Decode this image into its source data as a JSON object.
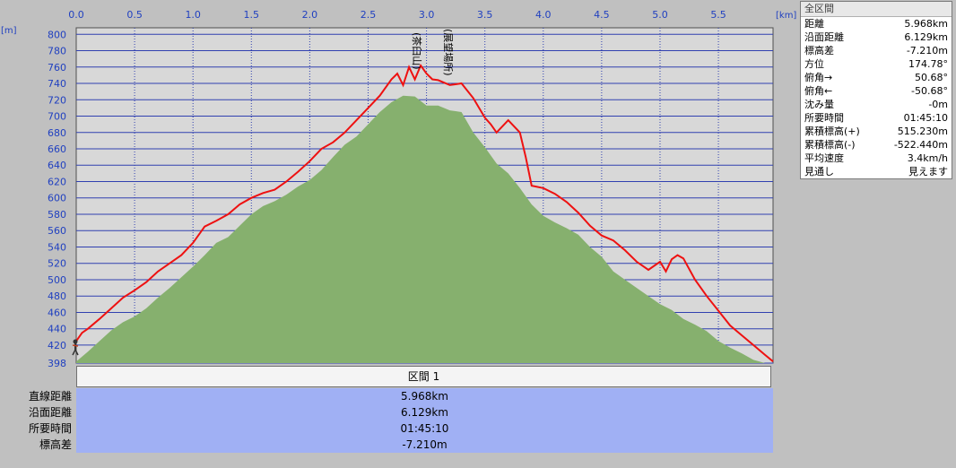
{
  "chart_data": {
    "type": "area",
    "x_unit": "[km]",
    "y_unit": "[m]",
    "x_ticks": [
      "0.0",
      "0.5",
      "1.0",
      "1.5",
      "2.0",
      "2.5",
      "3.0",
      "3.5",
      "4.0",
      "4.5",
      "5.0",
      "5.5"
    ],
    "y_ticks": [
      "800",
      "780",
      "760",
      "740",
      "720",
      "700",
      "680",
      "660",
      "640",
      "620",
      "600",
      "580",
      "560",
      "540",
      "520",
      "500",
      "480",
      "460",
      "440",
      "420",
      "398"
    ],
    "xlim": [
      0,
      5.968
    ],
    "ylim": [
      398,
      808
    ],
    "grid": true,
    "series": [
      {
        "color": "#ee1111",
        "x": [
          0.0,
          0.05,
          0.1,
          0.2,
          0.3,
          0.4,
          0.5,
          0.6,
          0.7,
          0.8,
          0.9,
          1.0,
          1.1,
          1.2,
          1.3,
          1.4,
          1.5,
          1.6,
          1.7,
          1.8,
          1.9,
          2.0,
          2.1,
          2.2,
          2.3,
          2.4,
          2.5,
          2.6,
          2.7,
          2.75,
          2.8,
          2.85,
          2.9,
          2.95,
          3.0,
          3.05,
          3.1,
          3.2,
          3.3,
          3.4,
          3.5,
          3.55,
          3.6,
          3.7,
          3.8,
          3.85,
          3.9,
          4.0,
          4.1,
          4.2,
          4.3,
          4.4,
          4.5,
          4.6,
          4.7,
          4.8,
          4.9,
          5.0,
          5.05,
          5.1,
          5.15,
          5.2,
          5.3,
          5.4,
          5.5,
          5.6,
          5.7,
          5.8,
          5.9,
          5.968
        ],
        "y": [
          425,
          435,
          440,
          452,
          465,
          478,
          487,
          497,
          510,
          520,
          530,
          545,
          565,
          572,
          580,
          592,
          600,
          606,
          610,
          620,
          632,
          645,
          660,
          668,
          680,
          695,
          710,
          725,
          745,
          752,
          738,
          760,
          745,
          762,
          752,
          745,
          744,
          738,
          740,
          722,
          698,
          690,
          680,
          695,
          680,
          650,
          615,
          612,
          605,
          595,
          582,
          566,
          554,
          548,
          536,
          522,
          512,
          522,
          510,
          525,
          530,
          526,
          500,
          480,
          462,
          444,
          432,
          420,
          408,
          400
        ]
      }
    ],
    "terrain": {
      "color": "#86b06e",
      "x": [
        0.0,
        0.1,
        0.2,
        0.3,
        0.4,
        0.5,
        0.6,
        0.7,
        0.8,
        0.9,
        1.0,
        1.1,
        1.2,
        1.3,
        1.4,
        1.5,
        1.6,
        1.7,
        1.8,
        1.9,
        2.0,
        2.1,
        2.2,
        2.3,
        2.4,
        2.5,
        2.6,
        2.7,
        2.8,
        2.9,
        3.0,
        3.1,
        3.2,
        3.3,
        3.4,
        3.5,
        3.6,
        3.7,
        3.8,
        3.9,
        4.0,
        4.1,
        4.2,
        4.3,
        4.4,
        4.5,
        4.6,
        4.7,
        4.8,
        4.9,
        5.0,
        5.1,
        5.2,
        5.3,
        5.4,
        5.5,
        5.6,
        5.7,
        5.8,
        5.9,
        5.968
      ],
      "y": [
        400,
        412,
        425,
        438,
        448,
        455,
        465,
        478,
        490,
        503,
        516,
        530,
        545,
        552,
        566,
        580,
        590,
        596,
        604,
        614,
        622,
        634,
        650,
        665,
        675,
        690,
        705,
        717,
        725,
        724,
        713,
        713,
        707,
        705,
        680,
        662,
        642,
        630,
        612,
        592,
        578,
        570,
        563,
        555,
        540,
        528,
        510,
        500,
        490,
        480,
        470,
        463,
        452,
        445,
        437,
        425,
        417,
        410,
        402,
        398,
        398
      ]
    },
    "annotations": [
      "(茶臼山)",
      "(展望場所)"
    ]
  },
  "summary_panel": {
    "title": "全区間",
    "rows": [
      {
        "label": "距離",
        "value": "5.968km"
      },
      {
        "label": "沿面距離",
        "value": "6.129km"
      },
      {
        "label": "標高差",
        "value": "-7.210m"
      },
      {
        "label": "方位",
        "value": "174.78°"
      },
      {
        "label": "俯角→",
        "value": "50.68°"
      },
      {
        "label": "俯角←",
        "value": "-50.68°"
      },
      {
        "label": "沈み量",
        "value": "-0m"
      },
      {
        "label": "所要時間",
        "value": "01:45:10"
      },
      {
        "label": "累積標高(+)",
        "value": "515.230m"
      },
      {
        "label": "累積標高(-)",
        "value": "-522.440m"
      },
      {
        "label": "平均速度",
        "value": "3.4km/h"
      },
      {
        "label": "見通し",
        "value": "見えます"
      }
    ]
  },
  "segment_table": {
    "header": "区間 1",
    "rows": [
      {
        "label": "直線距離",
        "value": "5.968km"
      },
      {
        "label": "沿面距離",
        "value": "6.129km"
      },
      {
        "label": "所要時間",
        "value": "01:45:10"
      },
      {
        "label": "標高差",
        "value": "-7.210m"
      }
    ]
  }
}
